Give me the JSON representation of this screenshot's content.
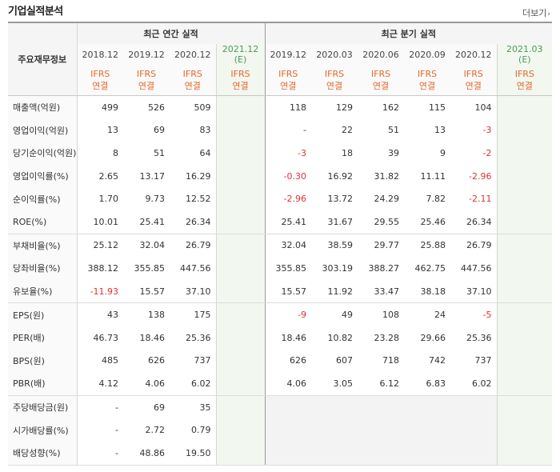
{
  "header": {
    "title": "기업실적분석",
    "more_label": "더보기"
  },
  "table": {
    "label_header": "주요재무정보",
    "annual_header": "최근 연간 실적",
    "quarter_header": "최근 분기 실적",
    "annual_periods": [
      "2018.12",
      "2019.12",
      "2020.12",
      "2021.12"
    ],
    "quarter_periods": [
      "2019.12",
      "2020.03",
      "2020.06",
      "2020.09",
      "2020.12",
      "2021.03"
    ],
    "estimate_mark": "(E)",
    "ifrs_label": "IFRS",
    "consolidated_label": "연결",
    "rows": [
      {
        "label": "매출액(억원)",
        "annual": [
          "499",
          "526",
          "509",
          ""
        ],
        "quarter": [
          "118",
          "129",
          "162",
          "115",
          "104",
          ""
        ]
      },
      {
        "label": "영업이익(억원)",
        "annual": [
          "13",
          "69",
          "83",
          ""
        ],
        "quarter": [
          "-",
          "22",
          "51",
          "13",
          "-3",
          ""
        ]
      },
      {
        "label": "당기순이익(억원)",
        "annual": [
          "8",
          "51",
          "64",
          ""
        ],
        "quarter": [
          "-3",
          "18",
          "39",
          "9",
          "-2",
          ""
        ]
      },
      {
        "label": "영업이익률(%)",
        "annual": [
          "2.65",
          "13.17",
          "16.29",
          ""
        ],
        "quarter": [
          "-0.30",
          "16.92",
          "31.82",
          "11.11",
          "-2.96",
          ""
        ]
      },
      {
        "label": "순이익률(%)",
        "annual": [
          "1.70",
          "9.73",
          "12.52",
          ""
        ],
        "quarter": [
          "-2.96",
          "13.72",
          "24.29",
          "7.82",
          "-2.11",
          ""
        ]
      },
      {
        "label": "ROE(%)",
        "annual": [
          "10.01",
          "25.41",
          "26.34",
          ""
        ],
        "quarter": [
          "25.41",
          "31.67",
          "29.55",
          "25.46",
          "26.34",
          ""
        ]
      },
      {
        "label": "부채비율(%)",
        "annual": [
          "25.12",
          "32.04",
          "26.79",
          ""
        ],
        "quarter": [
          "32.04",
          "38.59",
          "29.77",
          "25.88",
          "26.79",
          ""
        ]
      },
      {
        "label": "당좌비율(%)",
        "annual": [
          "388.12",
          "355.85",
          "447.56",
          ""
        ],
        "quarter": [
          "355.85",
          "303.19",
          "388.27",
          "462.75",
          "447.56",
          ""
        ]
      },
      {
        "label": "유보율(%)",
        "annual": [
          "-11.93",
          "15.57",
          "37.10",
          ""
        ],
        "quarter": [
          "15.57",
          "11.92",
          "33.47",
          "38.18",
          "37.10",
          ""
        ]
      },
      {
        "label": "EPS(원)",
        "annual": [
          "43",
          "138",
          "175",
          ""
        ],
        "quarter": [
          "-9",
          "49",
          "108",
          "24",
          "-5",
          ""
        ]
      },
      {
        "label": "PER(배)",
        "annual": [
          "46.73",
          "18.46",
          "25.36",
          ""
        ],
        "quarter": [
          "18.46",
          "10.82",
          "23.28",
          "29.66",
          "25.36",
          ""
        ]
      },
      {
        "label": "BPS(원)",
        "annual": [
          "485",
          "626",
          "737",
          ""
        ],
        "quarter": [
          "626",
          "607",
          "718",
          "742",
          "737",
          ""
        ]
      },
      {
        "label": "PBR(배)",
        "annual": [
          "4.12",
          "4.06",
          "6.02",
          ""
        ],
        "quarter": [
          "4.06",
          "3.05",
          "6.12",
          "6.83",
          "6.02",
          ""
        ]
      },
      {
        "label": "주당배당금(원)",
        "annual": [
          "-",
          "69",
          "35",
          ""
        ],
        "quarter": [
          "",
          "",
          "",
          "",
          "",
          ""
        ]
      },
      {
        "label": "시가배당률(%)",
        "annual": [
          "-",
          "2.72",
          "0.79",
          ""
        ],
        "quarter": [
          "",
          "",
          "",
          "",
          "",
          ""
        ]
      },
      {
        "label": "배당성향(%)",
        "annual": [
          "-",
          "48.86",
          "19.50",
          ""
        ],
        "quarter": [
          "",
          "",
          "",
          "",
          "",
          ""
        ]
      }
    ]
  },
  "colors": {
    "negative": "#e03333",
    "ifrs": "#e8672a",
    "estimate": "#4c9a5c"
  }
}
